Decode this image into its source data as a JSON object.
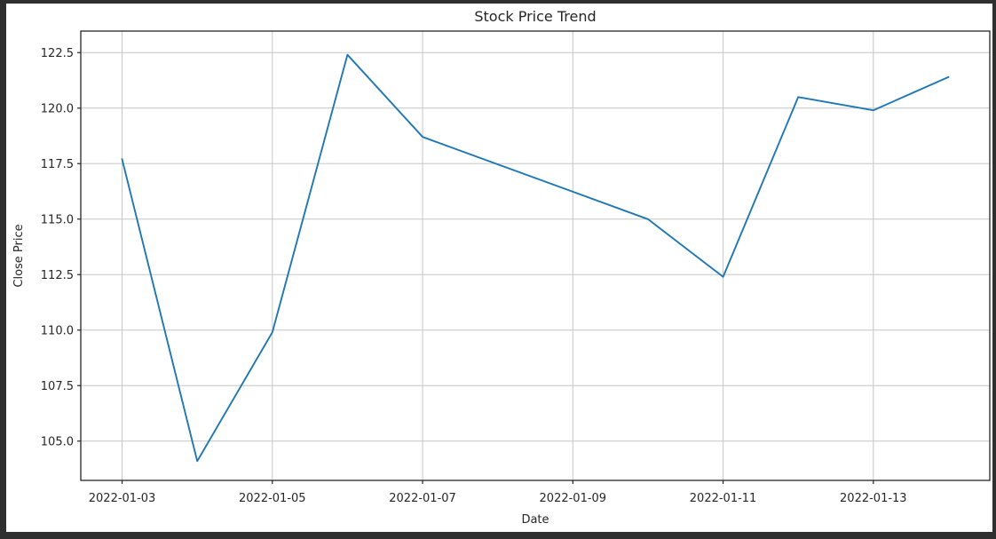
{
  "window": {
    "frame_color": "#2f2f2f",
    "figure_background": "#ffffff"
  },
  "chart_data": {
    "type": "line",
    "title": "Stock Price Trend",
    "xlabel": "Date",
    "ylabel": "Close Price",
    "grid": true,
    "legend": false,
    "line_color": "#1f77b4",
    "grid_color": "#c6c6c6",
    "axis_color": "#262626",
    "x": [
      "2022-01-03",
      "2022-01-04",
      "2022-01-05",
      "2022-01-06",
      "2022-01-07",
      "2022-01-10",
      "2022-01-11",
      "2022-01-12",
      "2022-01-13",
      "2022-01-14"
    ],
    "x_day_offsets": [
      0,
      1,
      2,
      3,
      4,
      7,
      8,
      9,
      10,
      11
    ],
    "series": [
      {
        "name": "Close Price",
        "values": [
          117.7,
          104.1,
          109.9,
          122.4,
          118.7,
          115.0,
          112.4,
          120.5,
          119.9,
          121.4
        ]
      }
    ],
    "x_tick_offsets": [
      0,
      2,
      4,
      6,
      8,
      10
    ],
    "x_tick_labels": [
      "2022-01-03",
      "2022-01-05",
      "2022-01-07",
      "2022-01-09",
      "2022-01-11",
      "2022-01-13"
    ],
    "y_tick_values": [
      105.0,
      107.5,
      110.0,
      112.5,
      115.0,
      117.5,
      120.0,
      122.5
    ],
    "y_tick_labels": [
      "105.0",
      "107.5",
      "110.0",
      "112.5",
      "115.0",
      "117.5",
      "120.0",
      "122.5"
    ],
    "xlim_day_offsets": [
      -0.55,
      11.55
    ],
    "ylim": [
      103.23,
      123.47
    ]
  }
}
